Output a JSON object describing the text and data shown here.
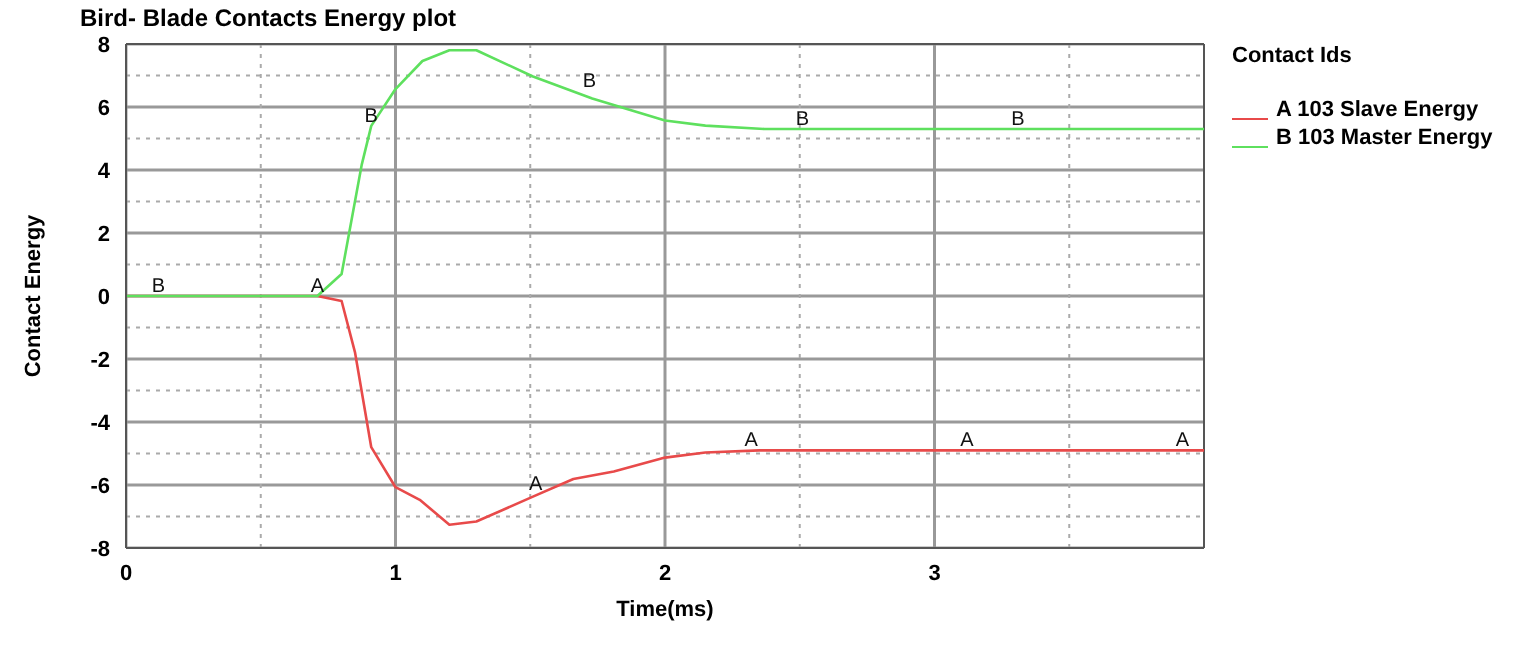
{
  "chart_data": {
    "type": "line",
    "title": "Bird- Blade Contacts Energy plot",
    "xlabel": "Time(ms)",
    "ylabel": "Contact Energy",
    "legend_title": "Contact Ids",
    "legend": "top right",
    "grid": true,
    "xlim": [
      0,
      4
    ],
    "xticks": [
      0,
      {
        "value": 0.5,
        "label": null
      },
      1,
      {
        "value": 1.5,
        "label": null
      },
      2,
      {
        "value": 2.5,
        "label": null
      },
      3,
      {
        "value": 3.5,
        "label": null
      }
    ],
    "ylim": [
      -8,
      8
    ],
    "yticks": [
      -8,
      {
        "value": -7,
        "label": null
      },
      -6,
      {
        "value": -5,
        "label": null
      },
      -4,
      {
        "value": -3,
        "label": null
      },
      -2,
      {
        "value": -1,
        "label": null
      },
      0,
      {
        "value": 1,
        "label": null
      },
      2,
      {
        "value": 3,
        "label": null
      },
      4,
      {
        "value": 5,
        "label": null
      },
      6,
      {
        "value": 7,
        "label": null
      },
      8
    ],
    "series": [
      {
        "name": "A 103 Slave Energy",
        "color": "#e84a4a",
        "x": [
          0,
          0.71,
          0.8,
          0.85,
          0.91,
          1.0,
          1.09,
          1.2,
          1.3,
          1.51,
          1.66,
          1.81,
          2.0,
          2.15,
          2.35,
          2.6,
          3,
          3.5,
          4
        ],
        "values": [
          0,
          0,
          -0.16,
          -1.8,
          -4.8,
          -6.07,
          -6.47,
          -7.26,
          -7.16,
          -6.37,
          -5.81,
          -5.57,
          -5.13,
          -4.97,
          -4.9,
          -4.9,
          -4.9,
          -4.9,
          -4.9
        ]
      },
      {
        "name": "B 103 Master Energy",
        "color": "#5ee05e",
        "x": [
          0,
          0.71,
          0.8,
          0.875,
          0.91,
          1.0,
          1.1,
          1.2,
          1.3,
          1.51,
          1.73,
          2.0,
          2.15,
          2.37,
          2.6,
          3,
          3.5,
          4
        ],
        "values": [
          0,
          0,
          0.7,
          4.18,
          5.4,
          6.57,
          7.46,
          7.8,
          7.8,
          6.97,
          6.27,
          5.57,
          5.41,
          5.3,
          5.3,
          5.3,
          5.3,
          5.3
        ]
      }
    ],
    "annotations": [
      {
        "text": "A",
        "x": 0.71,
        "y": 0
      },
      {
        "text": "A",
        "x": 1.52,
        "y": -6.3
      },
      {
        "text": "A",
        "x": 2.32,
        "y": -4.9
      },
      {
        "text": "A",
        "x": 3.12,
        "y": -4.9
      },
      {
        "text": "A",
        "x": 3.92,
        "y": -4.9
      },
      {
        "text": "B",
        "x": 0.12,
        "y": 0
      },
      {
        "text": "B",
        "x": 0.91,
        "y": 5.4
      },
      {
        "text": "B",
        "x": 1.72,
        "y": 6.5
      },
      {
        "text": "B",
        "x": 2.51,
        "y": 5.3
      },
      {
        "text": "B",
        "x": 3.31,
        "y": 5.3
      }
    ]
  }
}
